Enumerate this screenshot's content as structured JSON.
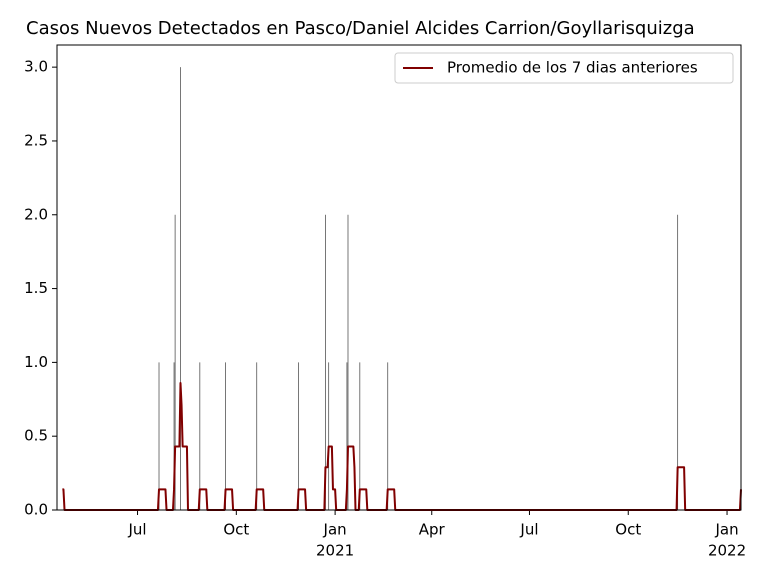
{
  "chart_data": {
    "type": "bar",
    "title": "Casos Nuevos Detectados en Pasco/Daniel Alcides Carrion/Goyllarisquizga",
    "x": [
      "2020-07-21",
      "2020-08-04",
      "2020-08-05",
      "2020-08-10",
      "2020-08-28",
      "2020-09-21",
      "2020-10-20",
      "2020-11-28",
      "2020-12-23",
      "2020-12-26",
      "2021-01-12",
      "2021-01-13",
      "2021-01-24",
      "2021-02-19",
      "2021-11-16"
    ],
    "values": [
      1,
      1,
      2,
      3,
      1,
      1,
      1,
      1,
      2,
      1,
      1,
      2,
      1,
      1,
      2
    ],
    "color": "#555555",
    "series": [
      {
        "name": "Promedio de los 7 dias anteriores",
        "type": "line",
        "color": "#800000",
        "x": [
          "2020-04-22",
          "2020-04-23",
          "2020-04-24",
          "2020-07-20",
          "2020-07-21",
          "2020-07-27",
          "2020-07-28",
          "2020-08-03",
          "2020-08-04",
          "2020-08-05",
          "2020-08-09",
          "2020-08-10",
          "2020-08-11",
          "2020-08-12",
          "2020-08-16",
          "2020-08-17",
          "2020-08-27",
          "2020-08-28",
          "2020-09-03",
          "2020-09-04",
          "2020-09-20",
          "2020-09-21",
          "2020-09-27",
          "2020-09-28",
          "2020-10-19",
          "2020-10-20",
          "2020-10-26",
          "2020-10-27",
          "2020-11-27",
          "2020-11-28",
          "2020-12-04",
          "2020-12-05",
          "2020-12-22",
          "2020-12-23",
          "2020-12-25",
          "2020-12-26",
          "2020-12-29",
          "2020-12-30",
          "2021-01-01",
          "2021-01-02",
          "2021-01-11",
          "2021-01-12",
          "2021-01-13",
          "2021-01-18",
          "2021-01-19",
          "2021-01-20",
          "2021-01-23",
          "2021-01-24",
          "2021-01-30",
          "2021-01-31",
          "2021-02-18",
          "2021-02-19",
          "2021-02-25",
          "2021-02-26",
          "2021-11-15",
          "2021-11-16",
          "2021-11-22",
          "2021-11-23",
          "2022-01-13",
          "2022-01-14"
        ],
        "values": [
          0.14,
          0.14,
          0,
          0,
          0.14,
          0.14,
          0,
          0,
          0.14,
          0.43,
          0.43,
          0.86,
          0.71,
          0.43,
          0.43,
          0,
          0,
          0.14,
          0.14,
          0,
          0,
          0.14,
          0.14,
          0,
          0,
          0.14,
          0.14,
          0,
          0,
          0.14,
          0.14,
          0,
          0,
          0.29,
          0.29,
          0.43,
          0.43,
          0.14,
          0.14,
          0,
          0,
          0.14,
          0.43,
          0.43,
          0.29,
          0,
          0,
          0.14,
          0.14,
          0,
          0,
          0.14,
          0.14,
          0,
          0,
          0.29,
          0.29,
          0,
          0,
          0.14
        ]
      }
    ],
    "xlim": [
      "2020-04-17",
      "2022-01-14"
    ],
    "xticks": [
      {
        "value": "2020-07-01",
        "label": "Jul"
      },
      {
        "value": "2020-10-01",
        "label": "Oct"
      },
      {
        "value": "2021-01-01",
        "label": "Jan"
      },
      {
        "value": "2021-04-01",
        "label": "Apr"
      },
      {
        "value": "2021-07-01",
        "label": "Jul"
      },
      {
        "value": "2021-10-01",
        "label": "Oct"
      },
      {
        "value": "2022-01-01",
        "label": "Jan"
      }
    ],
    "xtick_years": [
      {
        "value": "2021-01-01",
        "label": "2021"
      },
      {
        "value": "2022-01-01",
        "label": "2022"
      }
    ],
    "ylim": [
      0,
      3.15
    ],
    "yticks": [
      {
        "value": 0,
        "label": "0.0"
      },
      0.5,
      {
        "value": 1,
        "label": "1.0"
      },
      1.5,
      {
        "value": 2,
        "label": "2.0"
      },
      2.5,
      {
        "value": 3,
        "label": "3.0"
      }
    ],
    "legend": "upper right"
  }
}
